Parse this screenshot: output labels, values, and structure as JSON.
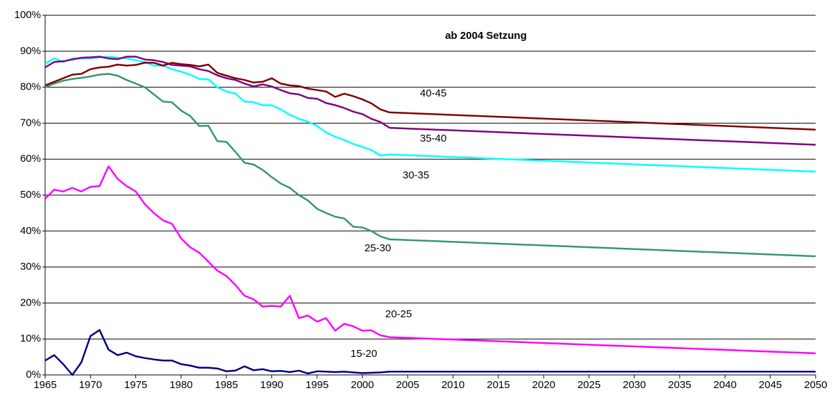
{
  "chart_data": {
    "type": "line",
    "annotation": "ab 2004 Setzung",
    "x": [
      1965,
      1966,
      1967,
      1968,
      1969,
      1970,
      1971,
      1972,
      1973,
      1974,
      1975,
      1976,
      1977,
      1978,
      1979,
      1980,
      1981,
      1982,
      1983,
      1984,
      1985,
      1986,
      1987,
      1988,
      1989,
      1990,
      1991,
      1992,
      1993,
      1994,
      1995,
      1996,
      1997,
      1998,
      1999,
      2000,
      2001,
      2002,
      2003,
      2050
    ],
    "xlim": [
      1965,
      2050
    ],
    "xticks": [
      1965,
      1970,
      1975,
      1980,
      1985,
      1990,
      1995,
      2000,
      2005,
      2010,
      2015,
      2020,
      2025,
      2030,
      2035,
      2040,
      2045,
      2050
    ],
    "ylim": [
      0,
      100
    ],
    "yticks": [
      {
        "value": 0,
        "label": "0%"
      },
      {
        "value": 10,
        "label": "10%"
      },
      {
        "value": 20,
        "label": "20%"
      },
      {
        "value": 30,
        "label": "30%"
      },
      {
        "value": 40,
        "label": "40%"
      },
      {
        "value": 50,
        "label": "50%"
      },
      {
        "value": 60,
        "label": "60%"
      },
      {
        "value": 70,
        "label": "70%"
      },
      {
        "value": 80,
        "label": "80%"
      },
      {
        "value": 90,
        "label": "90%"
      },
      {
        "value": 100,
        "label": "100%"
      }
    ],
    "grid": true,
    "series": [
      {
        "name": "15-20",
        "color": "#000080",
        "values": [
          4,
          5.5,
          3,
          0,
          3.5,
          10.8,
          12.5,
          7,
          5.5,
          6.2,
          5.2,
          4.7,
          4.3,
          4,
          4,
          3,
          2.6,
          2,
          2,
          1.8,
          1,
          1.2,
          2.4,
          1.3,
          1.6,
          1,
          1.1,
          0.8,
          1.2,
          0.4,
          1,
          0.9,
          0.8,
          0.9,
          0.7,
          0.5,
          0.6,
          0.7,
          0.9,
          0.9
        ]
      },
      {
        "name": "20-25",
        "color": "#ff00ff",
        "values": [
          49,
          51.5,
          51,
          52,
          51,
          52.3,
          52.5,
          58,
          54.5,
          52.5,
          51,
          47.5,
          45,
          43,
          42,
          38,
          35.5,
          34,
          31.5,
          29,
          27.5,
          25,
          22,
          21,
          19,
          19.2,
          19,
          22,
          15.8,
          16.5,
          14.8,
          15.8,
          12.3,
          14.2,
          13.5,
          12.3,
          12.4,
          11,
          10.5,
          6
        ]
      },
      {
        "name": "25-30",
        "color": "#339966",
        "values": [
          80,
          81,
          81.8,
          82.3,
          82.6,
          83,
          83.5,
          83.7,
          83.2,
          82,
          81,
          80,
          78,
          76,
          75.8,
          73.5,
          72,
          69.2,
          69.3,
          65,
          64.8,
          62,
          59,
          58.5,
          57,
          55,
          53.2,
          52,
          50,
          48.5,
          46.2,
          45,
          44,
          43.5,
          41.2,
          41,
          40,
          38.5,
          37.7,
          33
        ]
      },
      {
        "name": "30-35",
        "color": "#00ffff",
        "values": [
          86.5,
          88,
          87,
          88,
          88,
          88,
          88.3,
          88.5,
          88.2,
          88,
          87.5,
          87,
          86,
          86,
          85,
          84.3,
          83.5,
          82.3,
          82.2,
          80,
          78.8,
          78.2,
          76,
          75.8,
          75,
          75,
          73.8,
          72.3,
          71.2,
          70.4,
          69.2,
          67.4,
          66.2,
          65.3,
          64.2,
          63.4,
          62.5,
          61,
          61.3,
          56.5
        ]
      },
      {
        "name": "35-40",
        "color": "#800080",
        "values": [
          85.5,
          87,
          87.2,
          87.7,
          88.2,
          88.3,
          88.5,
          88,
          87.8,
          88.5,
          88.5,
          87.7,
          87.5,
          87,
          86.2,
          86,
          85.8,
          85,
          84.5,
          83.3,
          82.5,
          82,
          81,
          80.2,
          80.8,
          80.2,
          79.2,
          78.3,
          78,
          77,
          76.8,
          75.6,
          75,
          74.2,
          73.2,
          72.5,
          71.2,
          70.3,
          68.7,
          64
        ]
      },
      {
        "name": "40-45",
        "color": "#800000",
        "values": [
          80.5,
          81.5,
          82.5,
          83.5,
          83.7,
          85,
          85.5,
          85.7,
          86.3,
          86,
          86.2,
          86.8,
          86.8,
          86,
          86.8,
          86.4,
          86.2,
          85.8,
          86.3,
          84,
          83.2,
          82.5,
          82,
          81.3,
          81.5,
          82.5,
          81,
          80.5,
          80.3,
          79.6,
          79.2,
          78.8,
          77.3,
          78.2,
          77.5,
          76.6,
          75.5,
          73.8,
          73,
          68.2
        ]
      }
    ]
  }
}
